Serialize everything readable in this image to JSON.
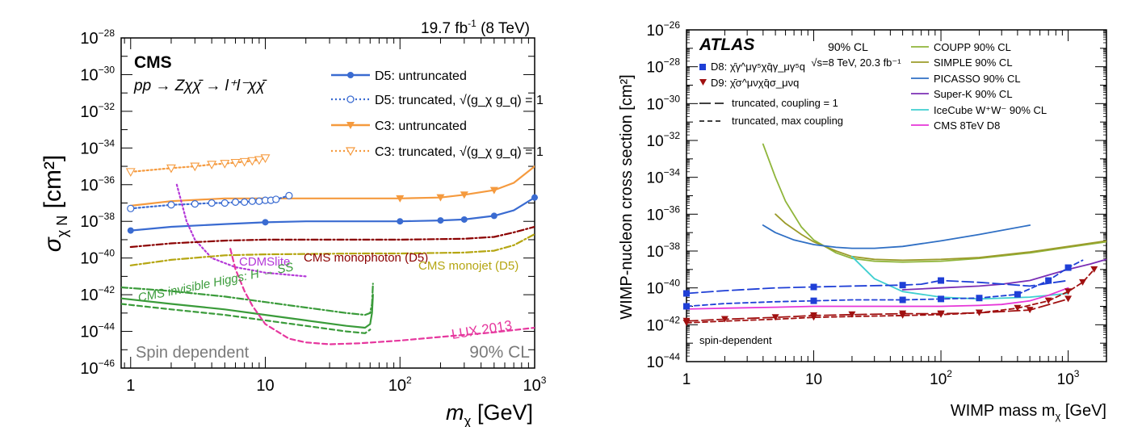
{
  "chart_data": [
    {
      "type": "line",
      "experiment": "CMS",
      "lumi_label": "19.7 fb",
      "lumi_sup": "-1",
      "lumi_suffix": " (8 TeV)",
      "process_label": "pp → Zχχ̄ → l⁺l⁻χχ̄",
      "xlabel": "m",
      "xlabel_sub": "χ",
      "xlabel_unit": " [GeV]",
      "ylabel": "σ",
      "ylabel_sub": "χ N",
      "ylabel_unit": " [cm²]",
      "x_scale": "log",
      "y_scale": "log",
      "xlim": [
        0.85,
        1000
      ],
      "ylim": [
        1e-46,
        1e-28
      ],
      "x_ticks": [
        {
          "v": 1,
          "label": "1"
        },
        {
          "v": 10,
          "label": "10"
        },
        {
          "v": 100,
          "label": "10",
          "sup": "2"
        },
        {
          "v": 1000,
          "label": "10",
          "sup": "3"
        }
      ],
      "y_ticks": [
        {
          "v": -28,
          "label": "10",
          "sup": "−28"
        },
        {
          "v": -30,
          "label": "10",
          "sup": "−30"
        },
        {
          "v": -32,
          "label": "10",
          "sup": "−32"
        },
        {
          "v": -34,
          "label": "10",
          "sup": "−34"
        },
        {
          "v": -36,
          "label": "10",
          "sup": "−36"
        },
        {
          "v": -38,
          "label": "10",
          "sup": "−38"
        },
        {
          "v": -40,
          "label": "10",
          "sup": "−40"
        },
        {
          "v": -42,
          "label": "10",
          "sup": "−42"
        },
        {
          "v": -44,
          "label": "10",
          "sup": "−44"
        },
        {
          "v": -46,
          "label": "10",
          "sup": "−46"
        }
      ],
      "legend_position": "top-right",
      "bottom_left_label": "Spin dependent",
      "bottom_right_label": "90% CL",
      "series": [
        {
          "name": "C3: truncated, √(g_χ g_q) = 1",
          "legend": true,
          "color": "#f59a3e",
          "style": "dotted",
          "marker": "triangle-open",
          "x": [
            1,
            2,
            3,
            4,
            5,
            6,
            7,
            8,
            9,
            10
          ],
          "logy": [
            -35.3,
            -35.1,
            -35.0,
            -34.9,
            -34.85,
            -34.8,
            -34.75,
            -34.7,
            -34.65,
            -34.55
          ]
        },
        {
          "name": "C3: untruncated",
          "legend": true,
          "color": "#f59a3e",
          "style": "solid",
          "marker": "triangle-filled",
          "x": [
            1,
            2,
            5,
            10,
            20,
            50,
            100,
            200,
            300,
            500,
            700,
            1000
          ],
          "marked_x": [
            100,
            200,
            300,
            500
          ],
          "logy": [
            -37.15,
            -36.9,
            -36.75,
            -36.75,
            -36.75,
            -36.75,
            -36.75,
            -36.7,
            -36.55,
            -36.3,
            -35.9,
            -35.0
          ]
        },
        {
          "name": "D5: truncated, √(g_χ g_q) = 1",
          "legend": true,
          "color": "#3a6bd1",
          "style": "dotted",
          "marker": "circle-open",
          "x": [
            1,
            2,
            3,
            4,
            5,
            6,
            7,
            8,
            9,
            10,
            11,
            12,
            15
          ],
          "logy": [
            -37.3,
            -37.1,
            -37.05,
            -37.0,
            -37.0,
            -36.95,
            -36.95,
            -36.9,
            -36.9,
            -36.85,
            -36.85,
            -36.8,
            -36.6
          ]
        },
        {
          "name": "D5: untruncated",
          "legend": true,
          "color": "#3a6bd1",
          "style": "solid",
          "marker": "circle-filled",
          "x": [
            1,
            2,
            5,
            10,
            20,
            50,
            100,
            200,
            300,
            500,
            700,
            1000
          ],
          "marked_x": [
            1,
            10,
            100,
            200,
            300,
            500,
            1000
          ],
          "logy": [
            -38.5,
            -38.3,
            -38.15,
            -38.05,
            -38.0,
            -38.0,
            -38.0,
            -37.95,
            -37.9,
            -37.7,
            -37.4,
            -36.7
          ]
        },
        {
          "name": "CDMSlite",
          "legend": false,
          "color": "#b438d8",
          "style": "dotted",
          "marker": "none",
          "x": [
            2.2,
            2.6,
            3.0,
            4,
            6,
            10,
            20
          ],
          "logy": [
            -36.0,
            -38.0,
            -39.0,
            -40.0,
            -40.5,
            -40.8,
            -41.0
          ]
        },
        {
          "name": "CMS monophoton (D5)",
          "legend": false,
          "color": "#8b0000",
          "style": "dashdot",
          "marker": "none",
          "x": [
            1,
            2,
            5,
            10,
            50,
            100,
            300,
            500,
            700,
            1000
          ],
          "logy": [
            -39.4,
            -39.2,
            -39.05,
            -39.0,
            -39.0,
            -39.0,
            -38.95,
            -38.85,
            -38.6,
            -38.3
          ]
        },
        {
          "name": "CMS monojet (D5)",
          "legend": false,
          "color": "#b5a612",
          "style": "dashdot",
          "marker": "none",
          "x": [
            1,
            2,
            5,
            10,
            50,
            100,
            300,
            500,
            700,
            1000
          ],
          "logy": [
            -40.4,
            -40.1,
            -39.85,
            -39.8,
            -39.75,
            -39.75,
            -39.7,
            -39.6,
            -39.3,
            -38.7
          ]
        },
        {
          "name": "CMS invisible Higgs: H → SS (dash-dot)",
          "legend": false,
          "color": "#3a9b3a",
          "style": "dashdot",
          "marker": "none",
          "x": [
            0.85,
            2,
            5,
            10,
            20,
            40,
            55,
            60,
            62,
            63
          ],
          "logy": [
            -41.6,
            -41.8,
            -42.1,
            -42.4,
            -42.7,
            -43.0,
            -43.1,
            -43.0,
            -42.5,
            -41.4
          ]
        },
        {
          "name": "CMS invisible Higgs: H → SS (solid)",
          "legend": false,
          "color": "#3a9b3a",
          "style": "solid",
          "marker": "none",
          "x": [
            0.85,
            2,
            5,
            10,
            20,
            40,
            55,
            60,
            62,
            63
          ],
          "logy": [
            -42.2,
            -42.5,
            -42.8,
            -43.1,
            -43.4,
            -43.7,
            -43.8,
            -43.6,
            -43.0,
            -42.0
          ]
        },
        {
          "name": "CMS invisible Higgs: H → SS (dashed)",
          "legend": false,
          "color": "#3a9b3a",
          "style": "dashed",
          "marker": "none",
          "x": [
            0.85,
            2,
            5,
            10,
            20,
            40,
            55,
            60
          ],
          "logy": [
            -42.5,
            -42.8,
            -43.1,
            -43.4,
            -43.7,
            -44.0,
            -44.1,
            -43.9
          ]
        },
        {
          "name": "LUX 2013",
          "legend": false,
          "color": "#e6379e",
          "style": "dashed",
          "marker": "none",
          "x": [
            5.5,
            6,
            7,
            8,
            10,
            15,
            20,
            30,
            50,
            100,
            200,
            500,
            1000
          ],
          "logy": [
            -39.5,
            -40.6,
            -41.8,
            -42.6,
            -43.6,
            -44.4,
            -44.6,
            -44.7,
            -44.65,
            -44.5,
            -44.3,
            -44.05,
            -43.8
          ]
        }
      ],
      "annotations": [
        {
          "text": "CDMSlite",
          "color": "#b438d8"
        },
        {
          "text": "CMS monophoton (D5)",
          "color": "#8b0000"
        },
        {
          "text": "CMS monojet (D5)",
          "color": "#b5a612"
        },
        {
          "text": "CMS invisible Higgs: H → SS",
          "color": "#3a9b3a"
        },
        {
          "text": "LUX 2013",
          "color": "#e6379e"
        }
      ],
      "legend": [
        {
          "label": "D5: untruncated",
          "color": "#3a6bd1",
          "style": "solid",
          "marker": "circle-filled"
        },
        {
          "label": "D5: truncated, √(g_χ g_q) = 1",
          "color": "#3a6bd1",
          "style": "dotted",
          "marker": "circle-open"
        },
        {
          "label": "C3: untruncated",
          "color": "#f59a3e",
          "style": "solid",
          "marker": "triangle-filled"
        },
        {
          "label": "C3: truncated, √(g_χ g_q) = 1",
          "color": "#f59a3e",
          "style": "dotted",
          "marker": "triangle-open"
        }
      ]
    },
    {
      "type": "line",
      "experiment": "ATLAS",
      "cl_label": "90% CL",
      "energy_label": "√s=8 TeV, 20.3 fb⁻¹",
      "xlabel": "WIMP mass m",
      "xlabel_sub": "χ",
      "xlabel_unit": " [GeV]",
      "ylabel": "WIMP-nucleon cross section [cm²]",
      "x_scale": "log",
      "y_scale": "log",
      "xlim": [
        1,
        2000
      ],
      "ylim": [
        1e-44,
        1e-26
      ],
      "x_ticks": [
        {
          "v": 1,
          "label": "1"
        },
        {
          "v": 10,
          "label": "10"
        },
        {
          "v": 100,
          "label": "10",
          "sup": "2"
        },
        {
          "v": 1000,
          "label": "10",
          "sup": "3"
        }
      ],
      "y_ticks": [
        {
          "v": -26,
          "label": "10",
          "sup": "−26"
        },
        {
          "v": -28,
          "label": "10",
          "sup": "−28"
        },
        {
          "v": -30,
          "label": "10",
          "sup": "−30"
        },
        {
          "v": -32,
          "label": "10",
          "sup": "−32"
        },
        {
          "v": -34,
          "label": "10",
          "sup": "−34"
        },
        {
          "v": -36,
          "label": "10",
          "sup": "−36"
        },
        {
          "v": -38,
          "label": "10",
          "sup": "−38"
        },
        {
          "v": -40,
          "label": "10",
          "sup": "−40"
        },
        {
          "v": -42,
          "label": "10",
          "sup": "−42"
        },
        {
          "v": -44,
          "label": "10",
          "sup": "−44"
        }
      ],
      "bottom_left_label": "spin-dependent",
      "legend_left": [
        {
          "label": "D8: χ̄γ^μγ⁵χq̄γ_μγ⁵q",
          "color": "#1f3fd6",
          "marker": "square"
        },
        {
          "label": "D9: χ̄σ^μνχq̄σ_μνq",
          "color": "#a01010",
          "marker": "triangle-down"
        },
        {
          "label": "truncated, coupling = 1",
          "color": "#000000",
          "style": "longdash"
        },
        {
          "label": "truncated, max coupling",
          "color": "#000000",
          "style": "dashed"
        }
      ],
      "legend_right": [
        {
          "label": "COUPP 90% CL",
          "color": "#8fb53a"
        },
        {
          "label": "SIMPLE 90% CL",
          "color": "#9b9b2a"
        },
        {
          "label": "PICASSO 90% CL",
          "color": "#2f6fc4"
        },
        {
          "label": "Super-K 90% CL",
          "color": "#7b2fb5"
        },
        {
          "label": "IceCube W⁺W⁻ 90% CL",
          "color": "#3fcfd0"
        },
        {
          "label": "CMS 8TeV D8",
          "color": "#e636d8"
        }
      ],
      "series": [
        {
          "name": "COUPP 90% CL",
          "color": "#8fb53a",
          "style": "solid",
          "marker": "none",
          "x": [
            4,
            5,
            6,
            8,
            10,
            15,
            20,
            30,
            50,
            100,
            200,
            500,
            1000,
            2000
          ],
          "logy": [
            -32.2,
            -34.0,
            -35.3,
            -36.7,
            -37.4,
            -38.1,
            -38.4,
            -38.55,
            -38.6,
            -38.55,
            -38.4,
            -38.1,
            -37.8,
            -37.5
          ]
        },
        {
          "name": "SIMPLE 90% CL",
          "color": "#9b9b2a",
          "style": "solid",
          "marker": "none",
          "x": [
            5,
            6,
            8,
            10,
            15,
            20,
            30,
            50,
            100,
            200,
            500,
            1000,
            2000
          ],
          "logy": [
            -36.0,
            -36.5,
            -37.1,
            -37.5,
            -38.0,
            -38.3,
            -38.45,
            -38.5,
            -38.45,
            -38.35,
            -38.05,
            -37.75,
            -37.45
          ]
        },
        {
          "name": "PICASSO 90% CL",
          "color": "#2f6fc4",
          "style": "solid",
          "marker": "none",
          "x": [
            4,
            5,
            7,
            10,
            15,
            20,
            30,
            50,
            100,
            200,
            500
          ],
          "logy": [
            -36.6,
            -37.0,
            -37.4,
            -37.65,
            -37.8,
            -37.85,
            -37.85,
            -37.75,
            -37.45,
            -37.1,
            -36.6
          ]
        },
        {
          "name": "Super-K 90% CL",
          "color": "#7b2fb5",
          "style": "solid",
          "marker": "none",
          "x": [
            50,
            100,
            200,
            300,
            500,
            700,
            1000,
            1500,
            2000
          ],
          "logy": [
            -40.1,
            -40.0,
            -39.9,
            -39.8,
            -39.6,
            -39.3,
            -39.0,
            -38.7,
            -38.45
          ]
        },
        {
          "name": "IceCube W⁺W⁻ 90% CL",
          "color": "#3fcfd0",
          "style": "solid",
          "marker": "none",
          "x": [
            20,
            30,
            50,
            100,
            200,
            500,
            1000
          ],
          "logy": [
            -38.3,
            -39.5,
            -40.2,
            -40.5,
            -40.6,
            -40.5,
            -40.3
          ]
        },
        {
          "name": "CMS 8TeV D8",
          "color": "#e636d8",
          "style": "solid",
          "marker": "none",
          "x": [
            1,
            2,
            5,
            10,
            20,
            50,
            100,
            200,
            300,
            500,
            700,
            1000
          ],
          "logy": [
            -41.15,
            -41.1,
            -41.05,
            -41.0,
            -41.0,
            -41.0,
            -41.0,
            -40.95,
            -40.9,
            -40.7,
            -40.4,
            -40.0
          ]
        },
        {
          "name": "D8 truncated, coupling = 1",
          "color": "#1f3fd6",
          "style": "longdash",
          "marker": "square",
          "x": [
            1,
            2,
            5,
            10,
            20,
            50,
            70,
            100,
            200,
            500,
            700,
            1000
          ],
          "marked_x": [
            1,
            10,
            50,
            100
          ],
          "logy": [
            -40.3,
            -40.15,
            -40.0,
            -39.95,
            -39.9,
            -39.85,
            -39.8,
            -39.6,
            -39.7,
            -39.9,
            -39.75,
            -39.6
          ]
        },
        {
          "name": "D8 truncated, max coupling",
          "color": "#1f3fd6",
          "style": "dashed",
          "marker": "square",
          "x": [
            1,
            2,
            5,
            10,
            20,
            50,
            100,
            200,
            400,
            700,
            1000,
            1300
          ],
          "marked_x": [
            1,
            10,
            50,
            100,
            200,
            400,
            700,
            1000
          ],
          "logy": [
            -41.0,
            -40.85,
            -40.75,
            -40.7,
            -40.65,
            -40.65,
            -40.6,
            -40.55,
            -40.35,
            -39.6,
            -38.9,
            -38.5
          ]
        },
        {
          "name": "D9 truncated, coupling = 1",
          "color": "#a01010",
          "style": "longdash",
          "marker": "triangle-down",
          "x": [
            1,
            2,
            5,
            10,
            20,
            50,
            100,
            200,
            500,
            1000
          ],
          "logy": [
            -41.8,
            -41.7,
            -41.6,
            -41.5,
            -41.45,
            -41.4,
            -41.4,
            -41.35,
            -41.2,
            -40.6
          ]
        },
        {
          "name": "D9 truncated, max coupling",
          "color": "#a01010",
          "style": "dashed",
          "marker": "triangle-down",
          "x": [
            1,
            2,
            5,
            10,
            20,
            50,
            100,
            200,
            400,
            700,
            1000,
            1300,
            1600
          ],
          "marked_x": [
            1,
            10,
            50,
            100,
            200,
            400,
            700,
            1000,
            1300,
            1600
          ],
          "logy": [
            -41.9,
            -41.8,
            -41.7,
            -41.6,
            -41.55,
            -41.5,
            -41.45,
            -41.35,
            -41.1,
            -40.7,
            -40.2,
            -39.7,
            -39.0
          ]
        }
      ]
    }
  ]
}
